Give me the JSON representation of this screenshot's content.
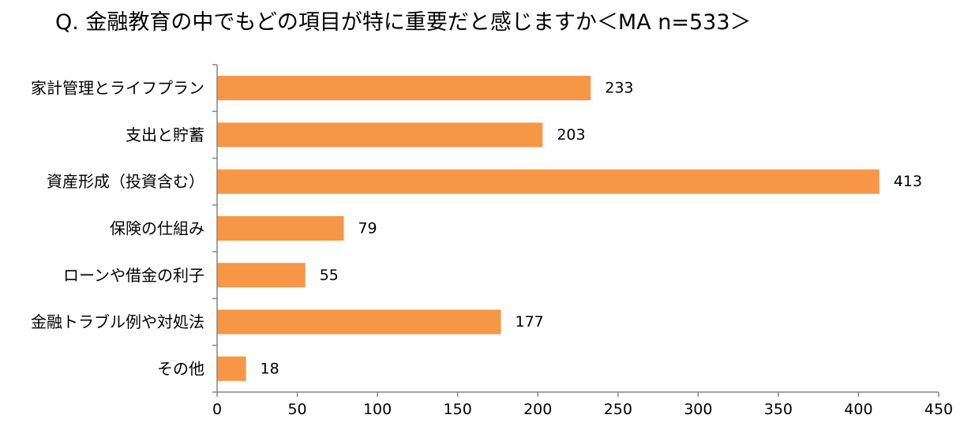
{
  "chart_data": {
    "type": "bar",
    "orientation": "horizontal",
    "title": "Q. 金融教育の中でもどの項目が特に重要だと感じますか＜MA n=533＞",
    "categories": [
      "家計管理とライフプラン",
      "支出と貯蓄",
      "資産形成（投資含む）",
      "保険の仕組み",
      "ローンや借金の利子",
      "金融トラブル例や対処法",
      "その他"
    ],
    "values": [
      233,
      203,
      413,
      79,
      55,
      177,
      18
    ],
    "xlim": [
      0,
      450
    ],
    "xticks": [
      0,
      50,
      100,
      150,
      200,
      250,
      300,
      350,
      400,
      450
    ],
    "bar_color": "#F79646",
    "grid": false,
    "legend": "none"
  }
}
